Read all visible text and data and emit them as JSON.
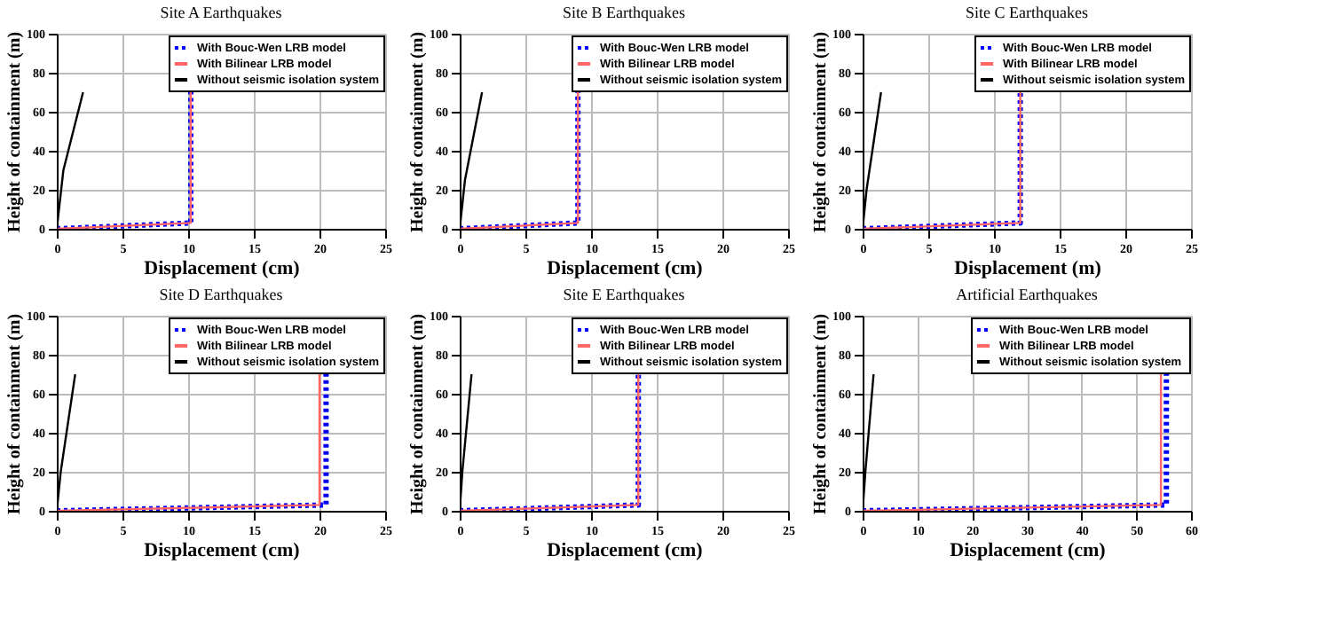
{
  "chart_data": [
    {
      "type": "line",
      "title": "Site A Earthquakes",
      "xlabel": "Displacement (cm)",
      "ylabel": "Height of containment (m)",
      "xlim": [
        0,
        25
      ],
      "xticks": [
        0,
        5,
        10,
        15,
        20,
        25
      ],
      "ylim": [
        0,
        100
      ],
      "yticks": [
        0,
        20,
        40,
        60,
        80,
        100
      ],
      "grid": true,
      "legend": "top right",
      "marker": "none",
      "series": [
        {
          "name": "With Bouc-Wen LRB model",
          "color": "#0000ff",
          "line_style": "dotted",
          "x": [
            0,
            10.2,
            10.2
          ],
          "values": [
            0,
            3,
            70
          ]
        },
        {
          "name": "With Bilinear LRB model",
          "color": "#ff6666",
          "line_style": "solid",
          "x": [
            0,
            10.2,
            10.2
          ],
          "values": [
            0,
            3,
            70
          ]
        },
        {
          "name": "Without seismic isolation system",
          "color": "#000000",
          "line_style": "solid",
          "x": [
            0,
            0.5,
            2
          ],
          "values": [
            0,
            30,
            70
          ]
        }
      ]
    },
    {
      "type": "line",
      "title": "Site B Earthquakes",
      "xlabel": "Displacement (cm)",
      "ylabel": "Height of containment (m)",
      "xlim": [
        0,
        25
      ],
      "xticks": [
        0,
        5,
        10,
        15,
        20,
        25
      ],
      "ylim": [
        0,
        100
      ],
      "yticks": [
        0,
        20,
        40,
        60,
        80,
        100
      ],
      "grid": true,
      "legend": "top right",
      "marker": "none",
      "series": [
        {
          "name": "With Bouc-Wen LRB model",
          "color": "#0000ff",
          "line_style": "dotted",
          "x": [
            0,
            9,
            9
          ],
          "values": [
            0,
            3,
            70
          ]
        },
        {
          "name": "With Bilinear LRB model",
          "color": "#ff6666",
          "line_style": "solid",
          "x": [
            0,
            9,
            9
          ],
          "values": [
            0,
            3,
            70
          ]
        },
        {
          "name": "Without seismic isolation system",
          "color": "#000000",
          "line_style": "solid",
          "x": [
            0,
            0.4,
            1.7
          ],
          "values": [
            0,
            25,
            70
          ]
        }
      ]
    },
    {
      "type": "line",
      "title": "Site C Earthquakes",
      "xlabel": "Displacement (m)",
      "ylabel": "Height of containment (m)",
      "xlim": [
        0,
        25
      ],
      "xticks": [
        0,
        5,
        10,
        15,
        20,
        25
      ],
      "ylim": [
        0,
        100
      ],
      "yticks": [
        0,
        20,
        40,
        60,
        80,
        100
      ],
      "grid": true,
      "legend": "top right",
      "marker": "none",
      "series": [
        {
          "name": "With Bouc-Wen LRB model",
          "color": "#0000ff",
          "line_style": "dotted",
          "x": [
            0,
            12,
            12
          ],
          "values": [
            0,
            3,
            70
          ]
        },
        {
          "name": "With Bilinear LRB model",
          "color": "#ff6666",
          "line_style": "solid",
          "x": [
            0,
            12,
            12
          ],
          "values": [
            0,
            3,
            70
          ]
        },
        {
          "name": "Without seismic isolation system",
          "color": "#000000",
          "line_style": "solid",
          "x": [
            0,
            0.3,
            1.4
          ],
          "values": [
            0,
            20,
            70
          ]
        }
      ]
    },
    {
      "type": "line",
      "title": "Site D Earthquakes",
      "xlabel": "Displacement (cm)",
      "ylabel": "Height of containment (m)",
      "xlim": [
        0,
        25
      ],
      "xticks": [
        0,
        5,
        10,
        15,
        20,
        25
      ],
      "ylim": [
        0,
        100
      ],
      "yticks": [
        0,
        20,
        40,
        60,
        80,
        100
      ],
      "grid": true,
      "legend": "top right",
      "marker": "none",
      "series": [
        {
          "name": "With Bouc-Wen LRB model",
          "color": "#0000ff",
          "line_style": "dotted",
          "x": [
            0,
            20.5,
            20.5
          ],
          "values": [
            0,
            3,
            70
          ]
        },
        {
          "name": "With Bilinear LRB model",
          "color": "#ff6666",
          "line_style": "solid",
          "x": [
            0,
            20,
            20
          ],
          "values": [
            0,
            3,
            70
          ]
        },
        {
          "name": "Without seismic isolation system",
          "color": "#000000",
          "line_style": "solid",
          "x": [
            0,
            0.3,
            1.4
          ],
          "values": [
            0,
            20,
            70
          ]
        }
      ]
    },
    {
      "type": "line",
      "title": "Site E Earthquakes",
      "xlabel": "Displacement (cm)",
      "ylabel": "Height of containment (m)",
      "xlim": [
        0,
        25
      ],
      "xticks": [
        0,
        5,
        10,
        15,
        20,
        25
      ],
      "ylim": [
        0,
        100
      ],
      "yticks": [
        0,
        20,
        40,
        60,
        80,
        100
      ],
      "grid": true,
      "legend": "top right",
      "marker": "none",
      "series": [
        {
          "name": "With Bouc-Wen LRB model",
          "color": "#0000ff",
          "line_style": "dotted",
          "x": [
            0,
            13.6,
            13.6
          ],
          "values": [
            0,
            3,
            70
          ]
        },
        {
          "name": "With Bilinear LRB model",
          "color": "#ff6666",
          "line_style": "solid",
          "x": [
            0,
            13.6,
            13.6
          ],
          "values": [
            0,
            3,
            70
          ]
        },
        {
          "name": "Without seismic isolation system",
          "color": "#000000",
          "line_style": "solid",
          "x": [
            0,
            0.2,
            0.9
          ],
          "values": [
            0,
            20,
            70
          ]
        }
      ]
    },
    {
      "type": "line",
      "title": "Artificial Earthquakes",
      "xlabel": "Displacement (cm)",
      "ylabel": "Height of containment (m)",
      "xlim": [
        0,
        60
      ],
      "xticks": [
        0,
        10,
        20,
        30,
        40,
        50,
        60
      ],
      "ylim": [
        0,
        100
      ],
      "yticks": [
        0,
        20,
        40,
        60,
        80,
        100
      ],
      "grid": true,
      "legend": "top right",
      "marker": "none",
      "series": [
        {
          "name": "With Bouc-Wen LRB model",
          "color": "#0000ff",
          "line_style": "dotted",
          "x": [
            0,
            55.5,
            55.5
          ],
          "values": [
            0,
            3,
            70
          ]
        },
        {
          "name": "With Bilinear LRB model",
          "color": "#ff6666",
          "line_style": "solid",
          "x": [
            0,
            54.5,
            54.5
          ],
          "values": [
            0,
            3,
            70
          ]
        },
        {
          "name": "Without  seismic isolation system",
          "color": "#000000",
          "line_style": "solid",
          "x": [
            0,
            0.5,
            2
          ],
          "values": [
            0,
            20,
            70
          ]
        }
      ]
    }
  ]
}
